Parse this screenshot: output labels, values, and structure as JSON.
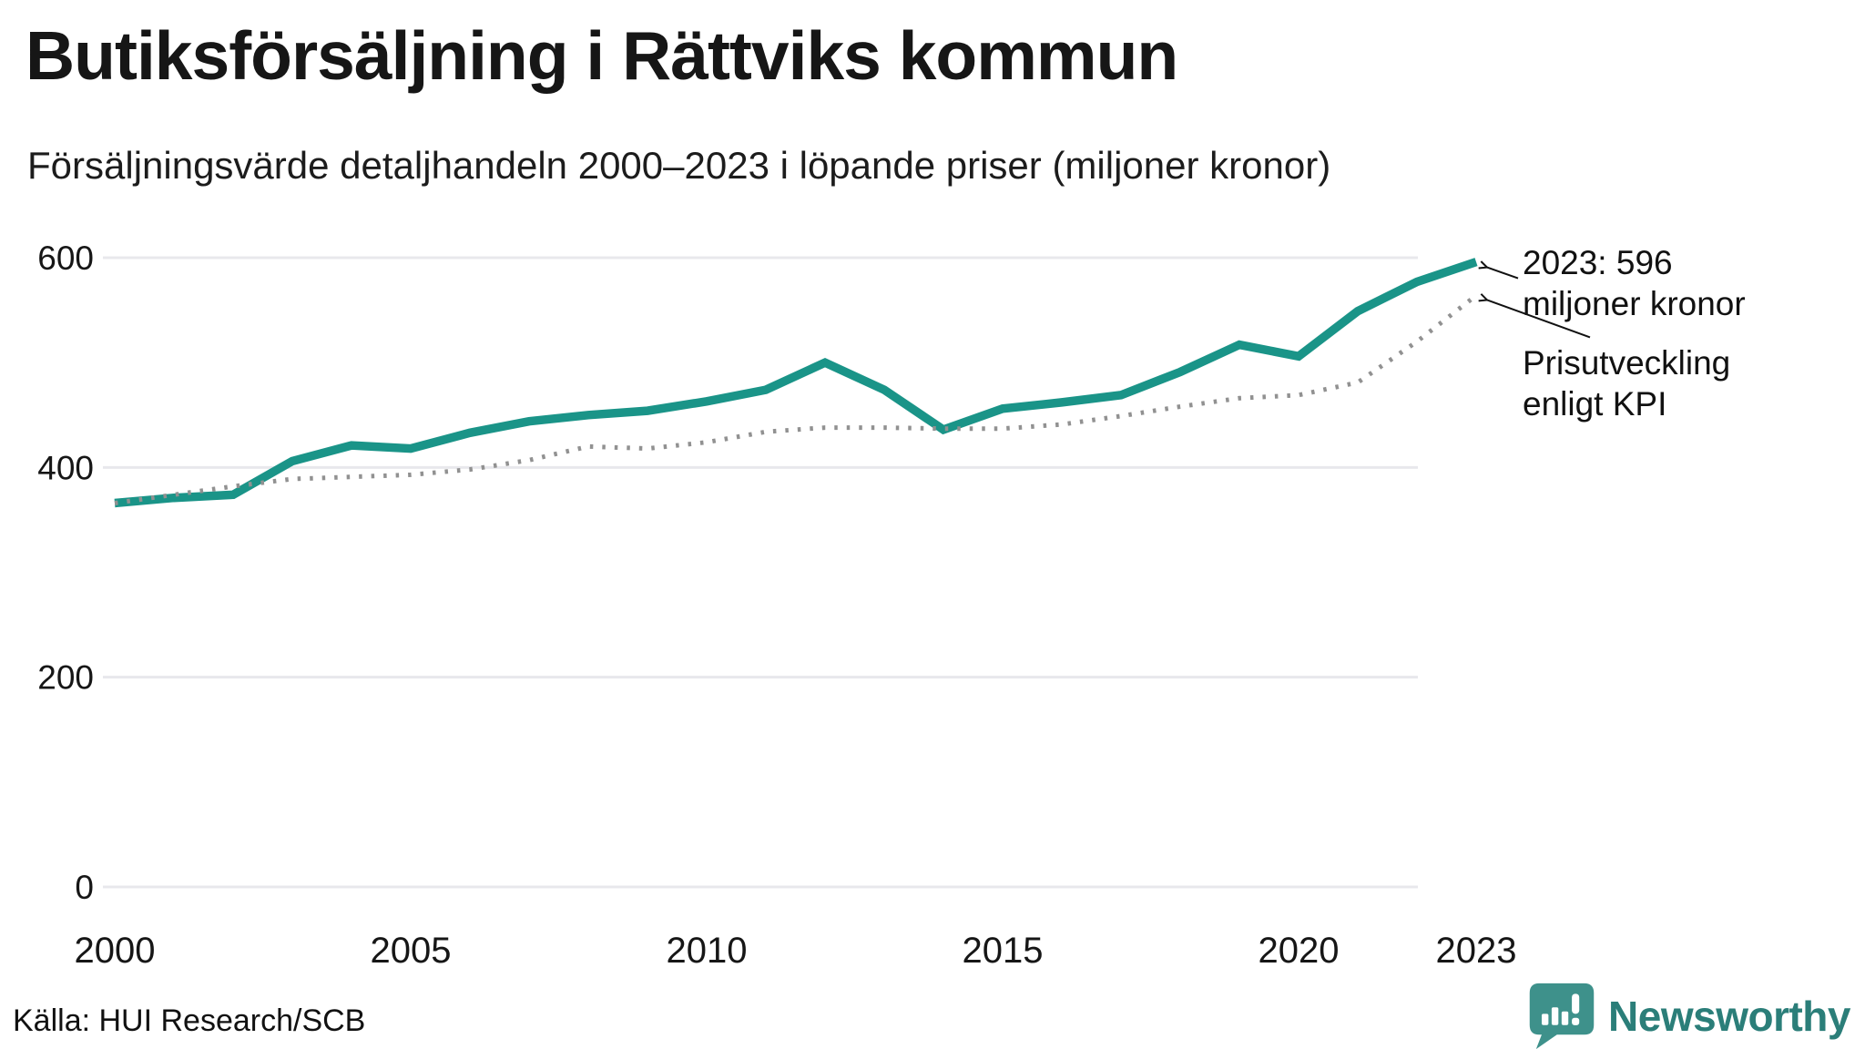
{
  "header": {
    "title": "Butiksförsäljning i Rättviks kommun",
    "subtitle": "Försäljningsvärde detaljhandeln 2000–2023 i löpande priser (miljoner kronor)"
  },
  "chart_data": {
    "type": "line",
    "title": "Butiksförsäljning i Rättviks kommun",
    "subtitle": "Försäljningsvärde detaljhandeln 2000–2023 i löpande priser (miljoner kronor)",
    "unit": "miljoner kronor",
    "x": [
      2000,
      2001,
      2002,
      2003,
      2004,
      2005,
      2006,
      2007,
      2008,
      2009,
      2010,
      2011,
      2012,
      2013,
      2014,
      2015,
      2016,
      2017,
      2018,
      2019,
      2020,
      2021,
      2022,
      2023
    ],
    "series": [
      {
        "name": "Försäljningsvärde i löpande priser",
        "color": "#1a9488",
        "line_style": "solid",
        "values": [
          366,
          371,
          374,
          406,
          421,
          418,
          433,
          444,
          450,
          454,
          463,
          474,
          500,
          474,
          436,
          456,
          462,
          469,
          491,
          517,
          506,
          549,
          577,
          596
        ]
      },
      {
        "name": "Prisutveckling enligt KPI",
        "color": "#919191",
        "line_style": "dotted",
        "values": [
          366,
          374,
          382,
          389,
          391,
          393,
          398,
          407,
          420,
          418,
          424,
          434,
          438,
          438,
          437,
          437,
          441,
          449,
          458,
          466,
          469,
          481,
          520,
          564
        ]
      }
    ],
    "ylim": [
      0,
      600
    ],
    "yticks": [
      0,
      200,
      400,
      600
    ],
    "xticks": [
      2000,
      2005,
      2010,
      2015,
      2020,
      2023
    ],
    "grid": "horizontal-only",
    "legend": "none",
    "annotations": [
      {
        "lines": [
          "2023: 596",
          "miljoner kronor"
        ],
        "points_to": "end-of-solid-series",
        "value": 596
      },
      {
        "lines": [
          "Prisutveckling",
          "enligt KPI"
        ],
        "points_to": "end-of-dotted-series"
      }
    ]
  },
  "footer": {
    "source": "Källa: HUI Research/SCB",
    "brand": "Newsworthy"
  },
  "colors": {
    "accent_teal": "#1a9488",
    "kpi_gray": "#919191",
    "gridline": "#e8e8ec",
    "text": "#161616",
    "logo_bubble_teal": "#3e918b",
    "logo_text_teal": "#2b7e79"
  }
}
